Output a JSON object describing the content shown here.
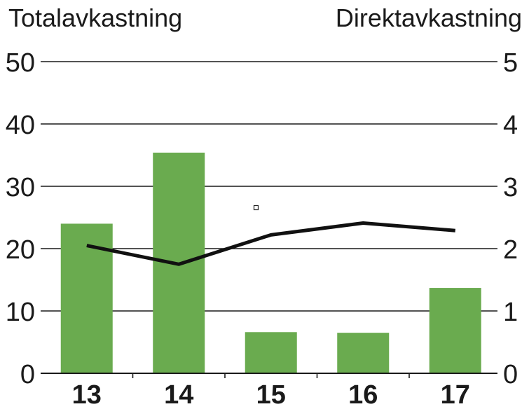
{
  "chart_data": {
    "type": "bar",
    "categories": [
      "13",
      "14",
      "15",
      "16",
      "17"
    ],
    "series": [
      {
        "type": "bar",
        "axis": "left",
        "color": "#6aab4f",
        "values": [
          24.0,
          35.4,
          6.6,
          6.5,
          13.7
        ]
      },
      {
        "type": "line",
        "axis": "right",
        "color": "#111111",
        "values": [
          2.05,
          1.75,
          2.22,
          2.41,
          2.29
        ]
      }
    ],
    "ylabel": "Totalavkastning",
    "y2label": "Direktavkastning",
    "ylim": [
      0,
      50
    ],
    "y2lim": [
      0,
      5
    ],
    "yticks": [
      "0",
      "10",
      "20",
      "30",
      "40",
      "50"
    ],
    "y2ticks": [
      "0",
      "1",
      "2",
      "3",
      "4",
      "5"
    ],
    "grid": true
  }
}
